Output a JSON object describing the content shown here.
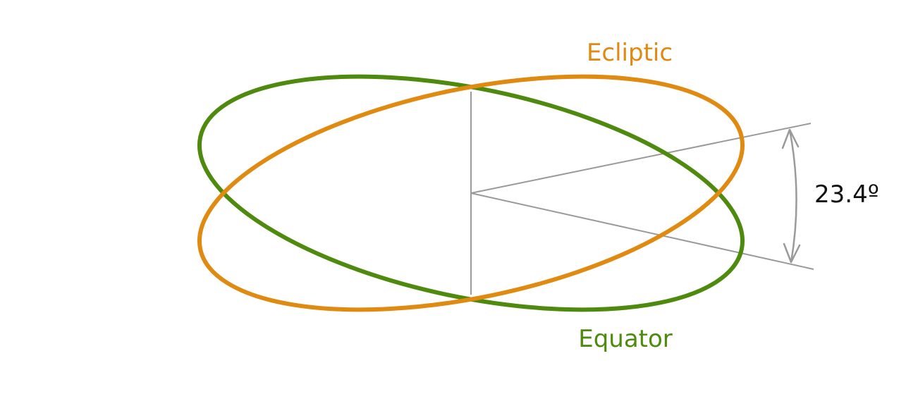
{
  "labels": {
    "ecliptic": "Ecliptic",
    "equator": "Equator",
    "angle": "23.4º"
  },
  "colors": {
    "ecliptic": "#E08A12",
    "equator": "#4E8A0E",
    "guide": "#9A9A9A",
    "angle_text": "#111111"
  },
  "obliquity_deg": 23.4
}
